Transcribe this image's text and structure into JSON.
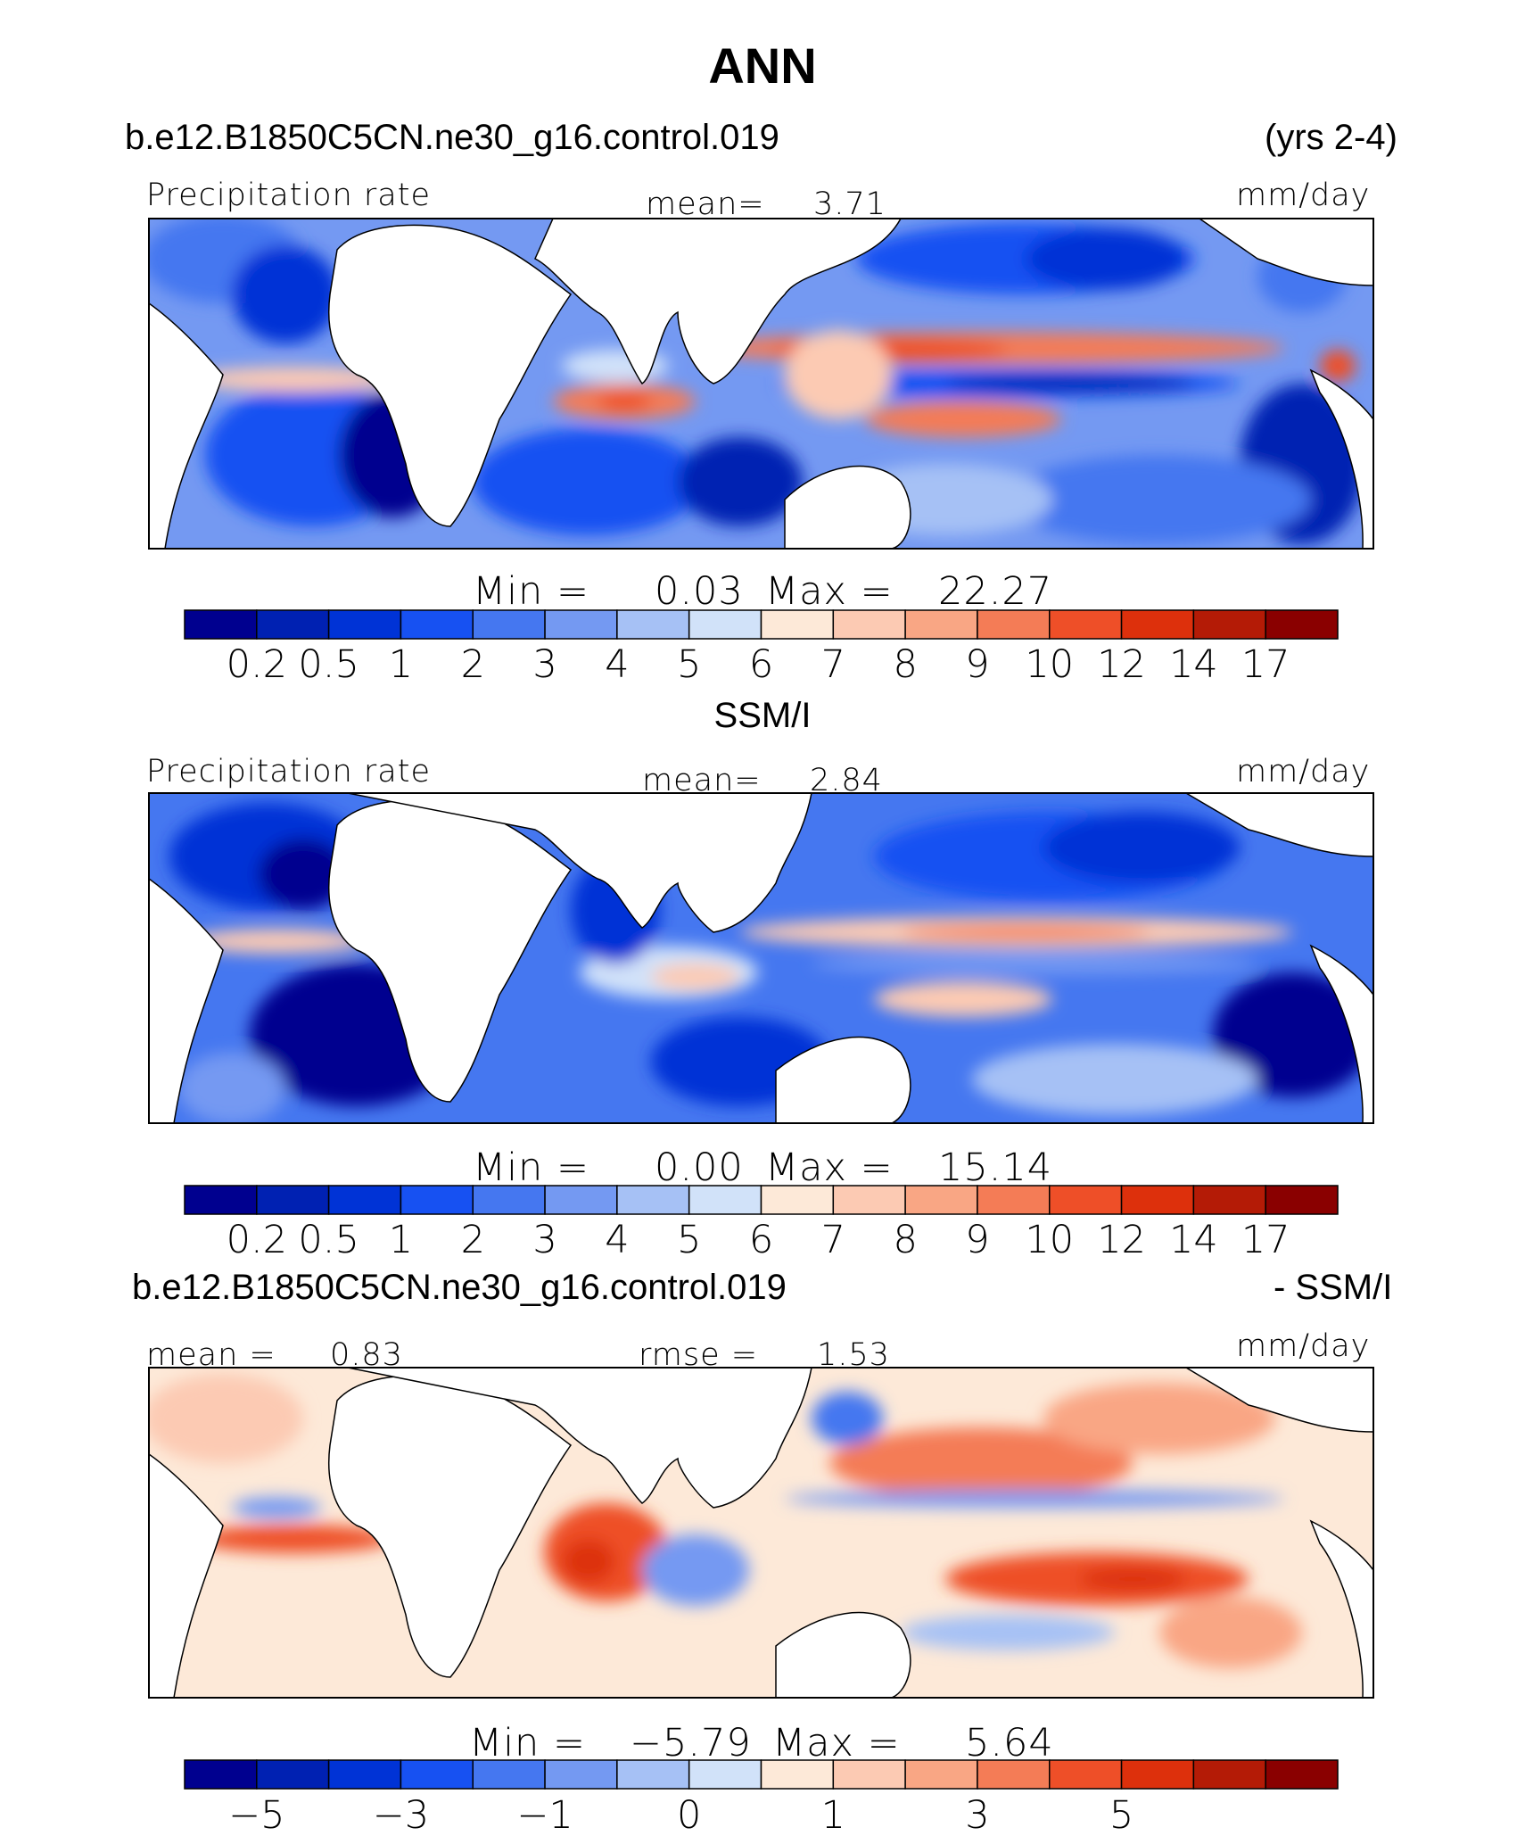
{
  "figure": {
    "title": "ANN",
    "case_name": "b.e12.B1850C5CN.ne30_g16.control.019",
    "years": "(yrs 2-4)",
    "obs_name": "SSM/I",
    "diff_left": "b.e12.B1850C5CN.ne30_g16.control.019",
    "diff_right": "- SSM/I"
  },
  "colors": {
    "abs_scale": [
      "#00008f",
      "#0021b2",
      "#0033d6",
      "#1751f2",
      "#4577f0",
      "#7499f2",
      "#a6c1f5",
      "#d1e2f9",
      "#fde9d8",
      "#fccab3",
      "#f9a684",
      "#f47c56",
      "#ee4f28",
      "#dd300c",
      "#b41b06",
      "#8a0000"
    ],
    "diff_scale": [
      "#00008f",
      "#0021b2",
      "#0033d6",
      "#1751f2",
      "#4577f0",
      "#7499f2",
      "#a6c1f5",
      "#d1e2f9",
      "#fde9d8",
      "#fccab3",
      "#f9a684",
      "#f47c56",
      "#ee4f28",
      "#dd300c",
      "#b41b06",
      "#8a0000"
    ]
  },
  "chart_data": [
    {
      "type": "heatmap",
      "title": "Precipitation rate",
      "units": "mm/day",
      "mean_label": "mean=",
      "mean_value": "3.71",
      "min_label": "Min =",
      "min_value": "0.03",
      "max_label": "Max =",
      "max_value": "22.27",
      "levels": [
        "0.2",
        "0.5",
        "1",
        "2",
        "3",
        "4",
        "5",
        "6",
        "7",
        "8",
        "9",
        "10",
        "12",
        "14",
        "17"
      ]
    },
    {
      "type": "heatmap",
      "title": "Precipitation rate",
      "units": "mm/day",
      "mean_label": "mean=",
      "mean_value": "2.84",
      "min_label": "Min =",
      "min_value": "0.00",
      "max_label": "Max =",
      "max_value": "15.14",
      "levels": [
        "0.2",
        "0.5",
        "1",
        "2",
        "3",
        "4",
        "5",
        "6",
        "7",
        "8",
        "9",
        "10",
        "12",
        "14",
        "17"
      ]
    },
    {
      "type": "heatmap",
      "title": "",
      "units": "mm/day",
      "mean_label": "mean =",
      "mean_value": "0.83",
      "rmse_label": "rmse =",
      "rmse_value": "1.53",
      "min_label": "Min =",
      "min_value": "−5.79",
      "max_label": "Max =",
      "max_value": "5.64",
      "levels": [
        "−5",
        "",
        "−3",
        "",
        "−1",
        "",
        "0",
        "",
        "1",
        "",
        "3",
        "",
        "5",
        "",
        ""
      ]
    }
  ]
}
